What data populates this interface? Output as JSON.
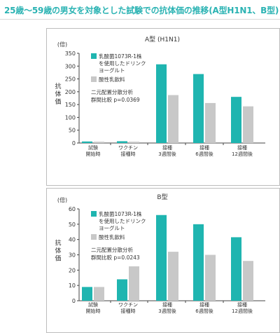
{
  "page": {
    "title": "25歳〜59歳の男女を対象とした試験での抗体価の推移(A型H1N1、B型)"
  },
  "chart_data": [
    {
      "type": "bar",
      "title": "A型 (H1N1)",
      "unit": "(倍)",
      "ylabel": "抗体価",
      "ylim": [
        0,
        350
      ],
      "yticks": [
        0,
        50,
        100,
        150,
        200,
        250,
        300,
        350
      ],
      "grid": false,
      "legend_position": "top-left",
      "categories": [
        "試験\n開始時",
        "ワクチン\n接種時",
        "接種\n3週間後",
        "接種\n6週間後",
        "接種\n12週間後"
      ],
      "series": [
        {
          "name": "乳酸菌1073R-1株\nを使用したドリンク\nヨーグルト",
          "color": "#1fb5b0",
          "values": [
            6,
            7,
            307,
            269,
            180
          ]
        },
        {
          "name": "酸性乳飲料",
          "color": "#c8c8c8",
          "values": [
            5,
            5,
            187,
            156,
            143
          ]
        }
      ],
      "annotation": [
        "二元配置分散分析",
        "群間比較 p=0.0369"
      ]
    },
    {
      "type": "bar",
      "title": "B型",
      "unit": "(倍)",
      "ylabel": "抗体価",
      "ylim": [
        0,
        60
      ],
      "yticks": [
        0,
        10,
        20,
        30,
        40,
        50,
        60
      ],
      "grid": false,
      "legend_position": "top-left",
      "categories": [
        "試験\n開始時",
        "ワクチン\n接種時",
        "接種\n3週間後",
        "接種\n6週間後",
        "接種\n12週間後"
      ],
      "series": [
        {
          "name": "乳酸菌1073R-1株\nを使用したドリンク\nヨーグルト",
          "color": "#1fb5b0",
          "values": [
            9,
            14,
            56,
            50,
            41.5
          ]
        },
        {
          "name": "酸性乳飲料",
          "color": "#c8c8c8",
          "values": [
            9,
            22.5,
            32,
            30,
            26
          ]
        }
      ],
      "annotation": [
        "二元配置分散分析",
        "群間比較 p=0.0243"
      ]
    }
  ]
}
